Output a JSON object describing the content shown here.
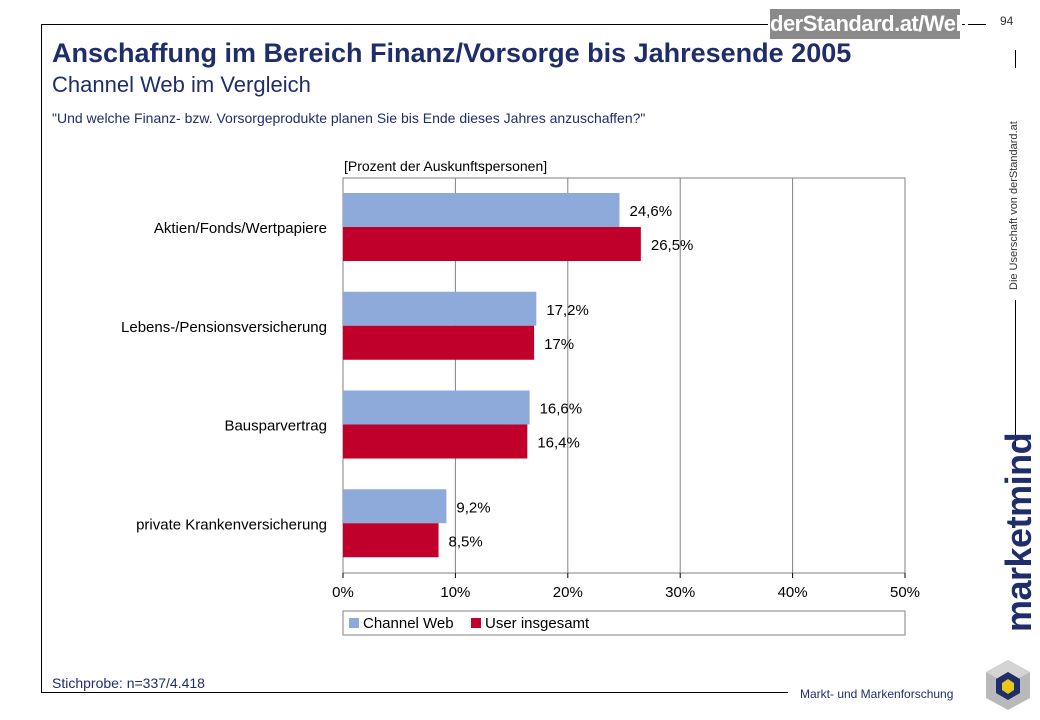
{
  "header": {
    "logo_text": "derStandard.at/Web",
    "page_number": "94",
    "title": "Anschaffung im Bereich Finanz/Vorsorge bis Jahresende 2005",
    "subtitle": "Channel Web im Vergleich",
    "question": "\"Und welche Finanz- bzw. Vorsorgeprodukte planen Sie bis Ende dieses Jahres anzuschaffen?\""
  },
  "footer": {
    "sample": "Stichprobe: n=337/4.418",
    "side_text": "Die Userschaft von derStandard.at",
    "brand": "marketmind",
    "claim": "Markt- und Markenforschung"
  },
  "colors": {
    "channel_web": "#8eaadb",
    "user_insgesamt": "#c0002a",
    "title": "#1f2d6b"
  },
  "chart_data": {
    "type": "bar",
    "orientation": "horizontal",
    "unit_label": "[Prozent der Auskunftspersonen]",
    "categories": [
      "Aktien/Fonds/Wertpapiere",
      "Lebens-/Pensionsversicherung",
      "Bausparvertrag",
      "private Krankenversicherung"
    ],
    "series": [
      {
        "name": "Channel Web",
        "values": [
          24.6,
          17.2,
          16.6,
          9.2
        ],
        "labels": [
          "24,6%",
          "17,2%",
          "16,6%",
          "9,2%"
        ]
      },
      {
        "name": "User insgesamt",
        "values": [
          26.5,
          17,
          16.4,
          8.5
        ],
        "labels": [
          "26,5%",
          "17%",
          "16,4%",
          "8,5%"
        ]
      }
    ],
    "xlim": [
      0,
      50
    ],
    "xticks": [
      "0%",
      "10%",
      "20%",
      "30%",
      "40%",
      "50%"
    ],
    "grid": true,
    "legend_position": "bottom"
  }
}
